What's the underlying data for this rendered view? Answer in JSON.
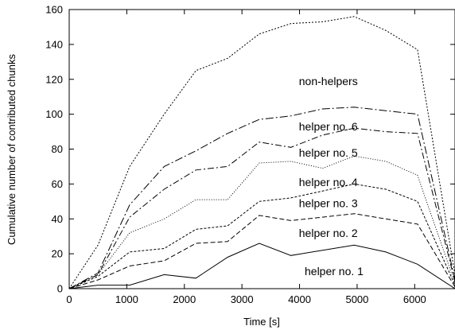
{
  "chart_data": {
    "type": "line",
    "title": "",
    "xlabel": "Time [s]",
    "ylabel": "Cumulative number of contributed chunks",
    "xlim": [
      0,
      6700
    ],
    "ylim": [
      0,
      160
    ],
    "xticks": [
      0,
      1000,
      2000,
      3000,
      4000,
      5000,
      6000
    ],
    "yticks": [
      0,
      20,
      40,
      60,
      80,
      100,
      120,
      140,
      160
    ],
    "grid": false,
    "legend": "inline annotations",
    "series": [
      {
        "name": "helper no. 1",
        "dash": "solid",
        "label_pos": [
          4600,
          10
        ],
        "x": [
          0,
          500,
          1050,
          1650,
          2200,
          2750,
          3300,
          3850,
          4400,
          4950,
          5500,
          6050,
          6700
        ],
        "y": [
          0,
          2,
          2,
          8,
          6,
          18,
          26,
          19,
          22,
          25,
          21,
          14,
          0
        ]
      },
      {
        "name": "helper no. 2",
        "dash": "6 3",
        "label_pos": [
          4500,
          32
        ],
        "x": [
          0,
          500,
          1050,
          1650,
          2200,
          2750,
          3300,
          3850,
          4400,
          4950,
          5500,
          6050,
          6700
        ],
        "y": [
          0,
          5,
          13,
          16,
          26,
          27,
          42,
          39,
          41,
          43,
          40,
          37,
          1
        ]
      },
      {
        "name": "helper no. 3",
        "dash": "3 2",
        "label_pos": [
          4500,
          49
        ],
        "x": [
          0,
          500,
          1050,
          1650,
          2200,
          2750,
          3300,
          3850,
          4400,
          4950,
          5500,
          6050,
          6700
        ],
        "y": [
          0,
          7,
          21,
          23,
          34,
          36,
          50,
          52,
          56,
          60,
          57,
          50,
          2
        ]
      },
      {
        "name": "helper no. 4",
        "dash": "1 2",
        "label_pos": [
          4500,
          61
        ],
        "x": [
          0,
          500,
          1050,
          1650,
          2200,
          2750,
          3300,
          3850,
          4400,
          4950,
          5500,
          6050,
          6700
        ],
        "y": [
          0,
          8,
          32,
          40,
          51,
          51,
          72,
          73,
          69,
          76,
          73,
          65,
          3
        ]
      },
      {
        "name": "helper no. 5",
        "dash": "8 3 2 3",
        "label_pos": [
          4500,
          78
        ],
        "x": [
          0,
          500,
          1050,
          1650,
          2200,
          2750,
          3300,
          3850,
          4400,
          4950,
          5500,
          6050,
          6700
        ],
        "y": [
          0,
          8,
          41,
          57,
          68,
          70,
          84,
          81,
          88,
          92,
          90,
          89,
          4
        ]
      },
      {
        "name": "helper no. 6",
        "dash": "10 3 2 3",
        "label_pos": [
          4500,
          93
        ],
        "x": [
          0,
          500,
          1050,
          1650,
          2200,
          2750,
          3300,
          3850,
          4400,
          4950,
          5500,
          6050,
          6700
        ],
        "y": [
          0,
          9,
          48,
          70,
          79,
          89,
          97,
          99,
          103,
          104,
          102,
          100,
          5
        ]
      },
      {
        "name": "non-helpers",
        "dash": "2 2",
        "label_pos": [
          4500,
          119
        ],
        "x": [
          0,
          500,
          1050,
          1650,
          2200,
          2750,
          3300,
          3850,
          4400,
          4950,
          5500,
          6050,
          6700
        ],
        "y": [
          0,
          25,
          70,
          100,
          125,
          132,
          146,
          152,
          153,
          156,
          148,
          137,
          8
        ]
      }
    ]
  }
}
